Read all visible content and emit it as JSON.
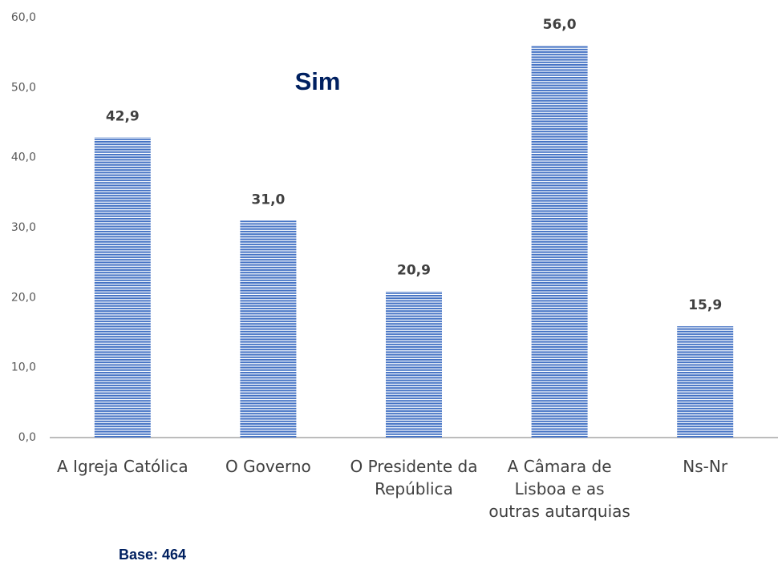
{
  "chart_data": {
    "type": "bar",
    "title": "Sim",
    "annotation": "Base: 464",
    "categories": [
      "A Igreja Católica",
      "O Governo",
      "O Presidente da República",
      "A Câmara de Lisboa e as outras autarquias",
      "Ns-Nr"
    ],
    "values": [
      42.9,
      31.0,
      20.9,
      56.0,
      15.9
    ],
    "value_labels": [
      "42,9",
      "31,0",
      "20,9",
      "56,0",
      "15,9"
    ],
    "color": "#4472c4",
    "title_color": "#002060",
    "ylim": [
      0,
      60
    ],
    "yticks": [
      {
        "value": 0,
        "label": "0,0"
      },
      {
        "value": 10,
        "label": "10,0"
      },
      {
        "value": 20,
        "label": "20,0"
      },
      {
        "value": 30,
        "label": "30,0"
      },
      {
        "value": 40,
        "label": "40,0"
      },
      {
        "value": 50,
        "label": "50,0"
      },
      {
        "value": 60,
        "label": "60,0"
      }
    ],
    "grid": false
  }
}
